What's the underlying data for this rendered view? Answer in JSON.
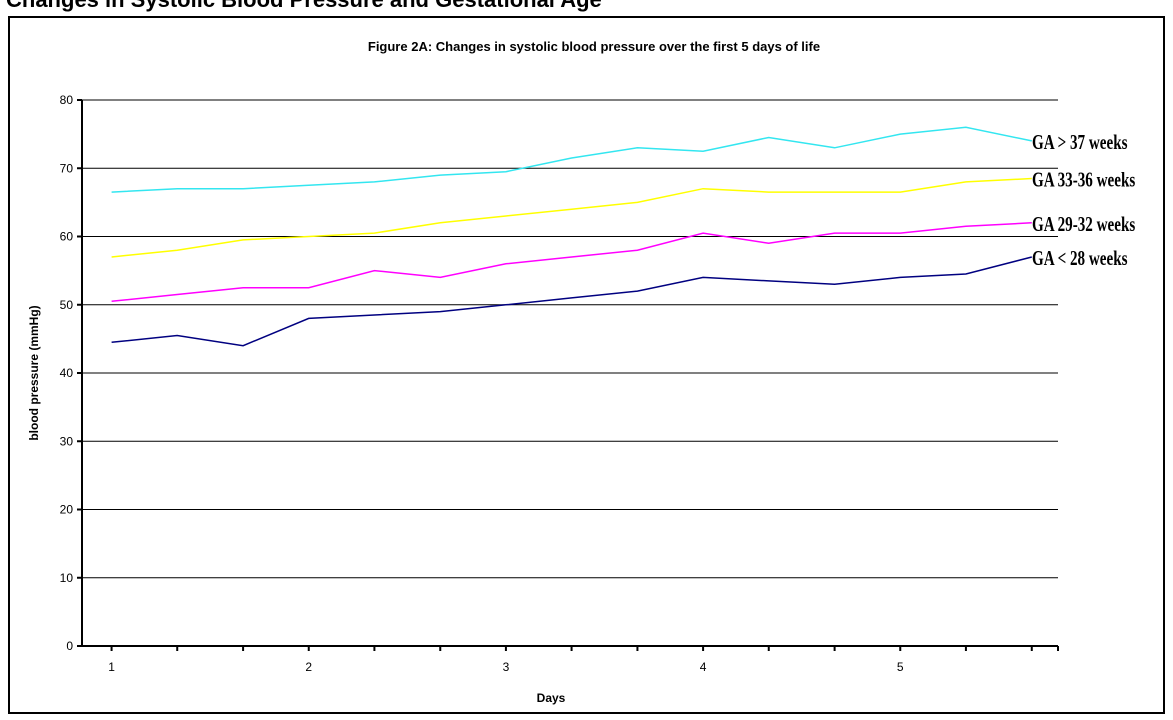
{
  "page": {
    "heading": "Changes in Systolic Blood Pressure and Gestational Age"
  },
  "chart_data": {
    "type": "line",
    "title": "Figure 2A:  Changes in systolic blood pressure over the first 5 days of life",
    "xlabel": "Days",
    "ylabel": "blood pressure (mmHg)",
    "ylim": [
      0,
      80
    ],
    "yticks": [
      0,
      10,
      20,
      30,
      40,
      50,
      60,
      70,
      80
    ],
    "xlim": [
      0.85,
      5.8
    ],
    "xtick_labels": [
      "1",
      "2",
      "3",
      "4",
      "5"
    ],
    "xtick_values": [
      1,
      2,
      3,
      4,
      5
    ],
    "grid": true,
    "series": [
      {
        "name": "GA > 37 weeks",
        "color": "#33e6f0",
        "x": [
          1,
          1.333,
          1.667,
          2,
          2.333,
          2.667,
          3,
          3.333,
          3.667,
          4,
          4.333,
          4.667,
          5,
          5.333,
          5.667
        ],
        "values": [
          66.5,
          67,
          67,
          67.5,
          68,
          69,
          69.5,
          71.5,
          73,
          72.5,
          74.5,
          73,
          75,
          76,
          74
        ]
      },
      {
        "name": "GA 33-36 weeks",
        "color": "#ffff00",
        "x": [
          1,
          1.333,
          1.667,
          2,
          2.333,
          2.667,
          3,
          3.333,
          3.667,
          4,
          4.333,
          4.667,
          5,
          5.333,
          5.667
        ],
        "values": [
          57,
          58,
          59.5,
          60,
          60.5,
          62,
          63,
          64,
          65,
          67,
          66.5,
          66.5,
          66.5,
          68,
          68.5
        ]
      },
      {
        "name": "GA 29-32 weeks",
        "color": "#ff00ff",
        "x": [
          1,
          1.333,
          1.667,
          2,
          2.333,
          2.667,
          3,
          3.333,
          3.667,
          4,
          4.333,
          4.667,
          5,
          5.333,
          5.667
        ],
        "values": [
          50.5,
          51.5,
          52.5,
          52.5,
          55,
          54,
          56,
          57,
          58,
          60.5,
          59,
          60.5,
          60.5,
          61.5,
          62
        ]
      },
      {
        "name": "GA < 28 weeks",
        "color": "#000080",
        "x": [
          1,
          1.333,
          1.667,
          2,
          2.333,
          2.667,
          3,
          3.333,
          3.667,
          4,
          4.333,
          4.667,
          5,
          5.333,
          5.667
        ],
        "values": [
          44.5,
          45.5,
          44,
          48,
          48.5,
          49,
          50,
          51,
          52,
          54,
          53.5,
          53,
          54,
          54.5,
          57
        ]
      }
    ]
  }
}
